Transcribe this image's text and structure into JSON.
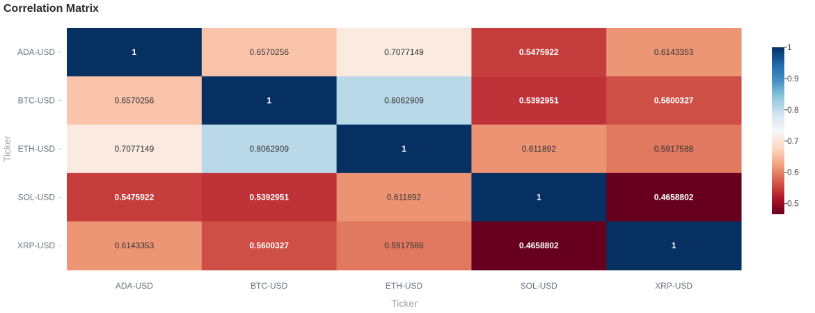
{
  "chart_data": {
    "type": "heatmap",
    "title": "Correlation Matrix",
    "xlabel": "Ticker",
    "ylabel": "Ticker",
    "x": [
      "ADA-USD",
      "BTC-USD",
      "ETH-USD",
      "SOL-USD",
      "XRP-USD"
    ],
    "y": [
      "ADA-USD",
      "BTC-USD",
      "ETH-USD",
      "SOL-USD",
      "XRP-USD"
    ],
    "z": [
      [
        "1",
        "0.6570256",
        "0.7077149",
        "0.5475922",
        "0.6143353"
      ],
      [
        "0.6570256",
        "1",
        "0.8062909",
        "0.5392951",
        "0.5600327"
      ],
      [
        "0.7077149",
        "0.8062909",
        "1",
        "0.611892",
        "0.5917588"
      ],
      [
        "0.5475922",
        "0.5392951",
        "0.611892",
        "1",
        "0.4658802"
      ],
      [
        "0.6143353",
        "0.5600327",
        "0.5917588",
        "0.4658802",
        "1"
      ]
    ],
    "zrange": [
      0.4658802,
      1
    ],
    "colorscale": "RdBu",
    "colorbar": {
      "ticks": [
        {
          "value": 1,
          "label": "1"
        },
        {
          "value": 0.9,
          "label": "0.9"
        },
        {
          "value": 0.8,
          "label": "0.8"
        },
        {
          "value": 0.7,
          "label": "0.7"
        },
        {
          "value": 0.6,
          "label": "0.6"
        },
        {
          "value": 0.5,
          "label": "0.5"
        }
      ],
      "placement": "right"
    },
    "grid": false
  }
}
